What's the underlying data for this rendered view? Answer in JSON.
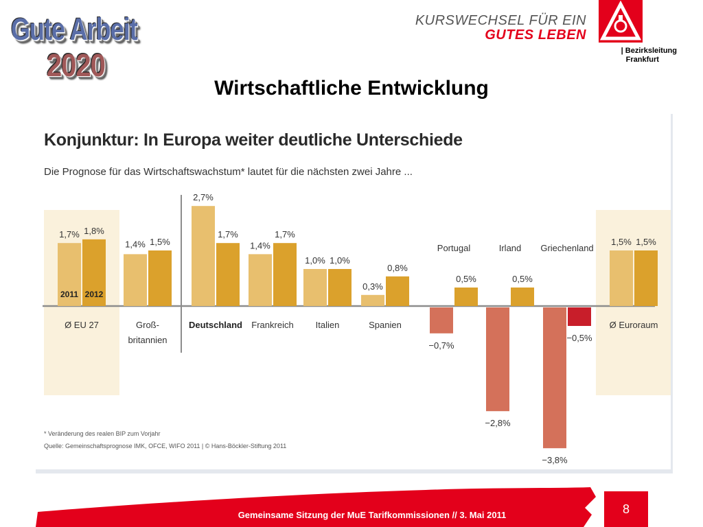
{
  "header": {
    "logo_line1": "Gute Arbeit",
    "logo_line2": "2020",
    "slogan_line1": "KURSWECHSEL FÜR EIN",
    "slogan_line2": "GUTES LEBEN",
    "district_line1": "| Bezirksleitung",
    "district_line2": "Frankfurt"
  },
  "page_title": "Wirtschaftliche Entwicklung",
  "chart_data": {
    "type": "bar",
    "title": "Konjunktur: In Europa weiter deutliche Unterschiede",
    "subtitle": "Die Prognose für das Wirtschaftswachstum* lautet für die nächsten zwei Jahre ...",
    "unit": "%",
    "categories": [
      "Ø EU 27",
      "Groß-britannien",
      "Deutschland",
      "Frankreich",
      "Italien",
      "Spanien",
      "Portugal",
      "Irland",
      "Griechenland",
      "Ø Euroraum"
    ],
    "category_label_lines": [
      [
        "Ø EU 27"
      ],
      [
        "Groß-",
        "britannien"
      ],
      [
        "Deutschland"
      ],
      [
        "Frankreich"
      ],
      [
        "Italien"
      ],
      [
        "Spanien"
      ],
      [
        "Portugal"
      ],
      [
        "Irland"
      ],
      [
        "Griechenland"
      ],
      [
        "Ø Euroraum"
      ]
    ],
    "series": [
      {
        "name": "2011",
        "values": [
          1.7,
          1.4,
          2.7,
          1.4,
          1.0,
          0.3,
          -0.7,
          -2.8,
          -3.8,
          1.5
        ]
      },
      {
        "name": "2012",
        "values": [
          1.8,
          1.5,
          1.7,
          1.7,
          1.0,
          0.8,
          0.5,
          0.5,
          -0.5,
          1.5
        ]
      }
    ],
    "value_labels": [
      [
        "1,7%",
        "1,4%",
        "2,7%",
        "1,4%",
        "1,0%",
        "0,3%",
        "−0,7%",
        "−2,8%",
        "−3,8%",
        "1,5%"
      ],
      [
        "1,8%",
        "1,5%",
        "1,7%",
        "1,7%",
        "1,0%",
        "0,8%",
        "0,5%",
        "0,5%",
        "−0,5%",
        "1,5%"
      ]
    ],
    "colors": {
      "series_2011": "#e8bf6e",
      "series_2012": "#dba12c",
      "negative_2011": "#d4715a",
      "negative_2012": "#c81e2a",
      "baseline": "#8c8c8c",
      "highlight_bg": "#faf1dc"
    },
    "ylim": [
      -4.0,
      3.0
    ],
    "grid": false,
    "highlight_categories": [
      "Ø EU 27",
      "Ø Euroraum"
    ],
    "footnote": "* Veränderung des realen BIP zum Vorjahr",
    "source": "Quelle: Gemeinschaftsprognose IMK, OFCE, WIFO 2011 | © Hans-Böckler-Stiftung 2011"
  },
  "footer": {
    "text": "Gemeinsame Sitzung der MuE Tarifkommissionen // 3. Mai 2011",
    "page_number": "8",
    "brand_color": "#e3001b"
  }
}
